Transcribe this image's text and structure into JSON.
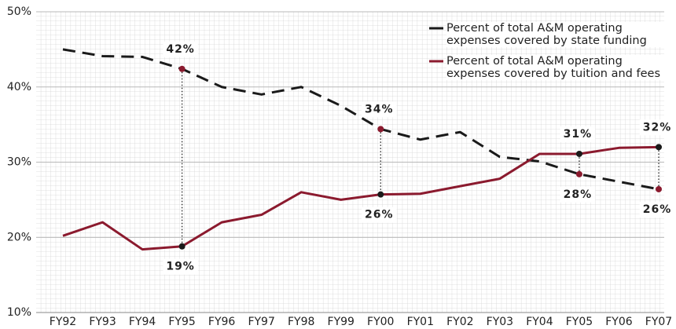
{
  "chart_data": {
    "type": "line",
    "categories": [
      "FY92",
      "FY93",
      "FY94",
      "FY95",
      "FY96",
      "FY97",
      "FY98",
      "FY99",
      "FY00",
      "FY01",
      "FY02",
      "FY03",
      "FY04",
      "FY05",
      "FY06",
      "FY07"
    ],
    "series": [
      {
        "name": "Percent of total A&M operating expenses covered by state funding",
        "color": "#1a1a1a",
        "dash": true,
        "marker_color": "#8b1a2e",
        "values": [
          45,
          44.1,
          44,
          42.4,
          40,
          39,
          40,
          37.5,
          34.4,
          33,
          34,
          30.7,
          30.1,
          28.4,
          27.4,
          26.4
        ],
        "value_labels": [
          null,
          null,
          null,
          "42%",
          null,
          null,
          null,
          null,
          "34%",
          null,
          null,
          null,
          null,
          "28%",
          null,
          "26%"
        ]
      },
      {
        "name": "Percent of total A&M operating expenses covered by tuition and fees",
        "color": "#8b1a2e",
        "dash": false,
        "marker_color": "#1a1a1a",
        "values": [
          20.2,
          22,
          18.4,
          18.8,
          22,
          23,
          26,
          25,
          25.7,
          25.8,
          26.8,
          27.8,
          31.1,
          31.1,
          31.9,
          32
        ],
        "value_labels": [
          null,
          null,
          null,
          "19%",
          null,
          null,
          null,
          null,
          "26%",
          null,
          null,
          null,
          null,
          "31%",
          null,
          "32%"
        ]
      }
    ],
    "ylim": [
      10,
      50
    ],
    "yticks": [
      {
        "value": 10,
        "label": "10%"
      },
      {
        "value": 20,
        "label": "20%"
      },
      {
        "value": 30,
        "label": "30%"
      },
      {
        "value": 40,
        "label": "40%"
      },
      {
        "value": 50,
        "label": "50%"
      }
    ],
    "grid": true,
    "legend": "upper right"
  }
}
